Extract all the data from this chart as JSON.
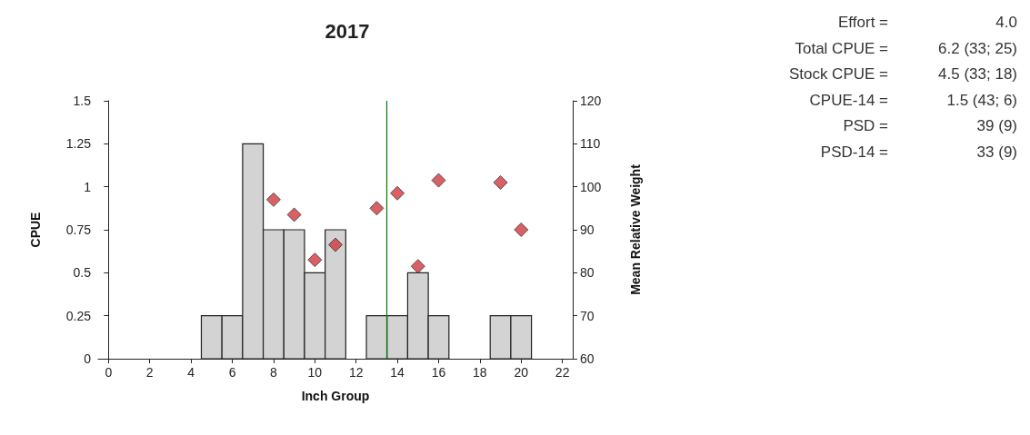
{
  "chart_data": {
    "type": "histogram",
    "title": "2017",
    "xlabel": "Inch Group",
    "ylabel": "CPUE",
    "y2label": "Mean Relative Weight",
    "bins": [
      4.5,
      5.5,
      6.5,
      7.5,
      8.5,
      9.5,
      10.5,
      11.5,
      12.5,
      13.5,
      14.5,
      15.5,
      16.5,
      17.5,
      18.5,
      19.5,
      20.5
    ],
    "series": [
      {
        "color": "#d3d3d3",
        "values": [
          0.25,
          0.25,
          1.25,
          0.75,
          0.75,
          0.5,
          0.75,
          0,
          0.25,
          0.25,
          0.5,
          0.25,
          0,
          0,
          0.25,
          0.25
        ]
      },
      {
        "type": "scatter",
        "axis": "y2",
        "color": "#d0393e",
        "marker": "diamond",
        "x": [
          8,
          9,
          10,
          11,
          13,
          14,
          15,
          16,
          19,
          20
        ],
        "values": [
          97,
          93.5,
          83,
          86.5,
          95,
          98.5,
          81.5,
          101.5,
          101,
          90
        ]
      }
    ],
    "xlim": [
      -0.5,
      22.5
    ],
    "xticks": [
      0,
      2,
      4,
      6,
      8,
      10,
      12,
      14,
      16,
      18,
      20,
      22
    ],
    "ylim": [
      0,
      1.5
    ],
    "yticks": [
      0,
      0.25,
      0.5,
      0.75,
      1,
      1.25,
      1.5
    ],
    "y2lim": [
      60,
      120
    ],
    "y2ticks": [
      60,
      70,
      80,
      90,
      100,
      110,
      120
    ],
    "ref_lines": [
      {
        "axis": "x",
        "value": 13.5,
        "color": "#008000"
      }
    ],
    "annotations": [
      "Effort = 4.0",
      "Total CPUE = 6.2 (33; 25)",
      "Stock CPUE = 4.5 (33; 18)",
      "CPUE-14 = 1.5 (43; 6)",
      "PSD = 39 (9)",
      "PSD-14 = 33 (9)"
    ]
  }
}
